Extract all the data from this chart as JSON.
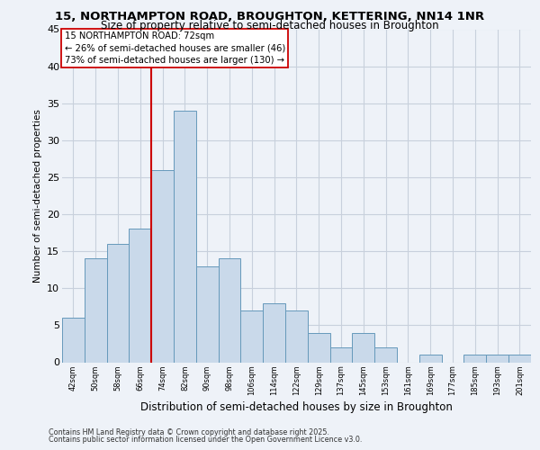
{
  "title_line1": "15, NORTHAMPTON ROAD, BROUGHTON, KETTERING, NN14 1NR",
  "title_line2": "Size of property relative to semi-detached houses in Broughton",
  "xlabel": "Distribution of semi-detached houses by size in Broughton",
  "ylabel": "Number of semi-detached properties",
  "footnote1": "Contains HM Land Registry data © Crown copyright and database right 2025.",
  "footnote2": "Contains public sector information licensed under the Open Government Licence v3.0.",
  "bin_labels": [
    "42sqm",
    "50sqm",
    "58sqm",
    "66sqm",
    "74sqm",
    "82sqm",
    "90sqm",
    "98sqm",
    "106sqm",
    "114sqm",
    "122sqm",
    "129sqm",
    "137sqm",
    "145sqm",
    "153sqm",
    "161sqm",
    "169sqm",
    "177sqm",
    "185sqm",
    "193sqm",
    "201sqm"
  ],
  "bar_values": [
    6,
    14,
    16,
    18,
    26,
    34,
    13,
    14,
    7,
    8,
    7,
    4,
    2,
    4,
    2,
    0,
    1,
    0,
    1,
    1,
    1
  ],
  "bar_color": "#c9d9ea",
  "bar_edge_color": "#6699bb",
  "ylim": [
    0,
    45
  ],
  "yticks": [
    0,
    5,
    10,
    15,
    20,
    25,
    30,
    35,
    40,
    45
  ],
  "property_label": "15 NORTHAMPTON ROAD: 72sqm",
  "pct_smaller": 26,
  "pct_larger": 73,
  "n_smaller": 46,
  "n_larger": 130,
  "vline_bin_index": 4,
  "vline_color": "#cc0000",
  "bg_color": "#eef2f8",
  "annotation_box_color": "#ffffff",
  "annotation_box_edge": "#cc0000",
  "grid_color": "#c8d0dc"
}
